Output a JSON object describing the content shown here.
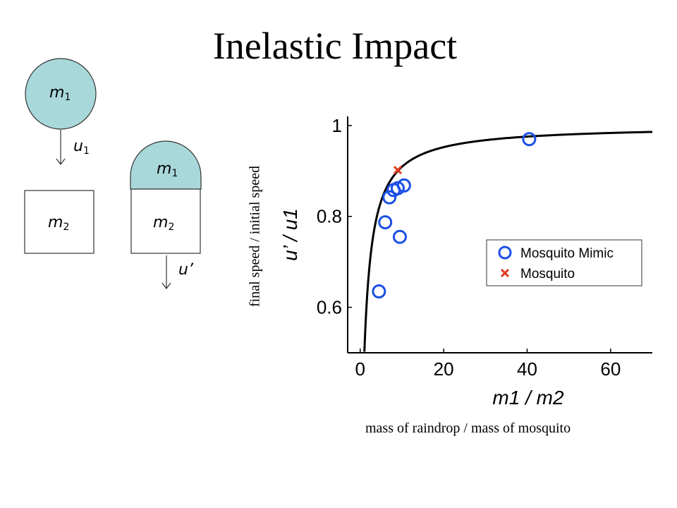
{
  "title": "Inelastic Impact",
  "diagram": {
    "before_mass_label": "m",
    "before_mass_sub": "1",
    "before_speed_label": "u",
    "before_speed_sub": "1",
    "target_mass_label": "m",
    "target_mass_sub": "2",
    "after_drop_label": "m",
    "after_drop_sub": "1",
    "after_target_label": "m",
    "after_target_sub": "2",
    "after_speed_label": "u’",
    "drop_color": "#a8d8da"
  },
  "outer_ylabel": "final speed / initial speed",
  "outer_xlabel": "mass of raindrop / mass of mosquito",
  "chart_data": {
    "type": "scatter",
    "xlabel": "m1 / m2",
    "ylabel": "u’ / u1",
    "xlim": [
      -3,
      70
    ],
    "ylim": [
      0.5,
      1.02
    ],
    "xticks": [
      "0",
      "20",
      "40",
      "60"
    ],
    "yticks": [
      "0.6",
      "0.8",
      "1"
    ],
    "xtick_values": [
      0,
      20,
      40,
      60
    ],
    "ytick_values": [
      0.6,
      0.8,
      1.0
    ],
    "grid": false,
    "legend_position": "center-right",
    "curve": {
      "formula": "x/(x+1)",
      "x_start": 0.8,
      "x_end": 70,
      "color": "#000000"
    },
    "series": [
      {
        "name": "Mosquito Mimic",
        "marker": "circle",
        "color": "#1a4fe6",
        "x": [
          4.5,
          6.0,
          7.0,
          8.0,
          9.0,
          9.5,
          10.5,
          40.5
        ],
        "y": [
          0.635,
          0.787,
          0.842,
          0.858,
          0.862,
          0.755,
          0.868,
          0.97
        ]
      },
      {
        "name": "Mosquito",
        "marker": "x",
        "color": "#e23a1e",
        "x": [
          9.0
        ],
        "y": [
          0.902
        ]
      }
    ]
  }
}
